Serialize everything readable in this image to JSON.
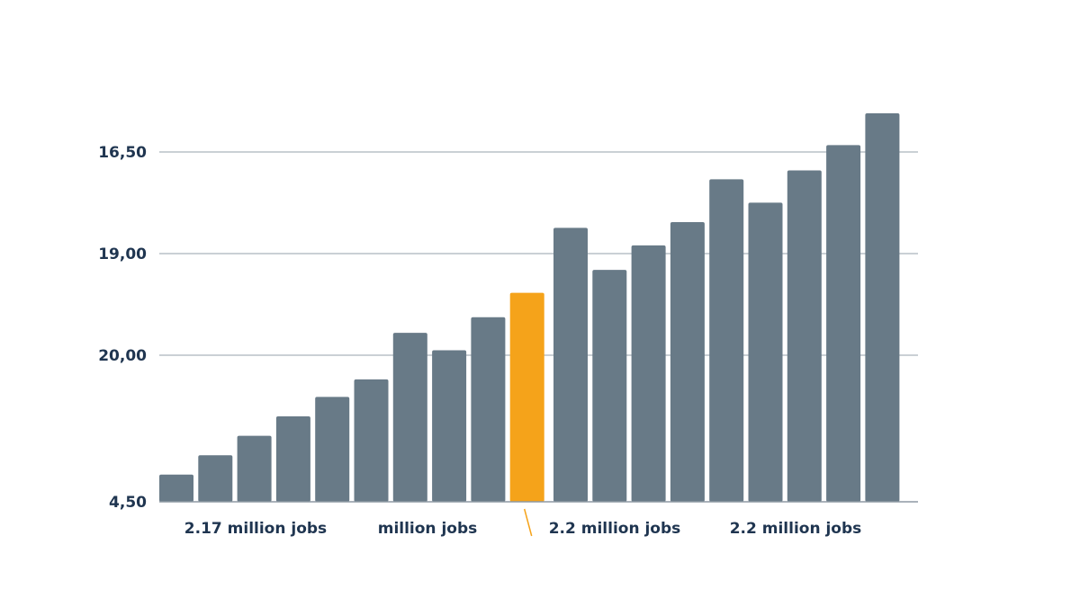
{
  "chart_data": {
    "type": "bar",
    "title": "",
    "xlabel": "",
    "ylabel": "",
    "y_ticks": [
      "4,50",
      "20,00",
      "19,00",
      "16,50"
    ],
    "values": [
      0.07,
      0.12,
      0.17,
      0.22,
      0.27,
      0.315,
      0.435,
      0.39,
      0.475,
      0.538,
      0.705,
      0.597,
      0.66,
      0.72,
      0.83,
      0.77,
      0.853,
      0.918,
      1.0
    ],
    "highlight_index": 9,
    "group_labels": [
      "2.17 million jobs",
      "million jobs",
      "2.2 million jobs",
      "2.2 million jobs"
    ],
    "grid": true,
    "colors": {
      "bar": "#687a87",
      "highlight": "#f5a31a",
      "text": "#1f3550",
      "grid": "#aab3bc"
    }
  }
}
